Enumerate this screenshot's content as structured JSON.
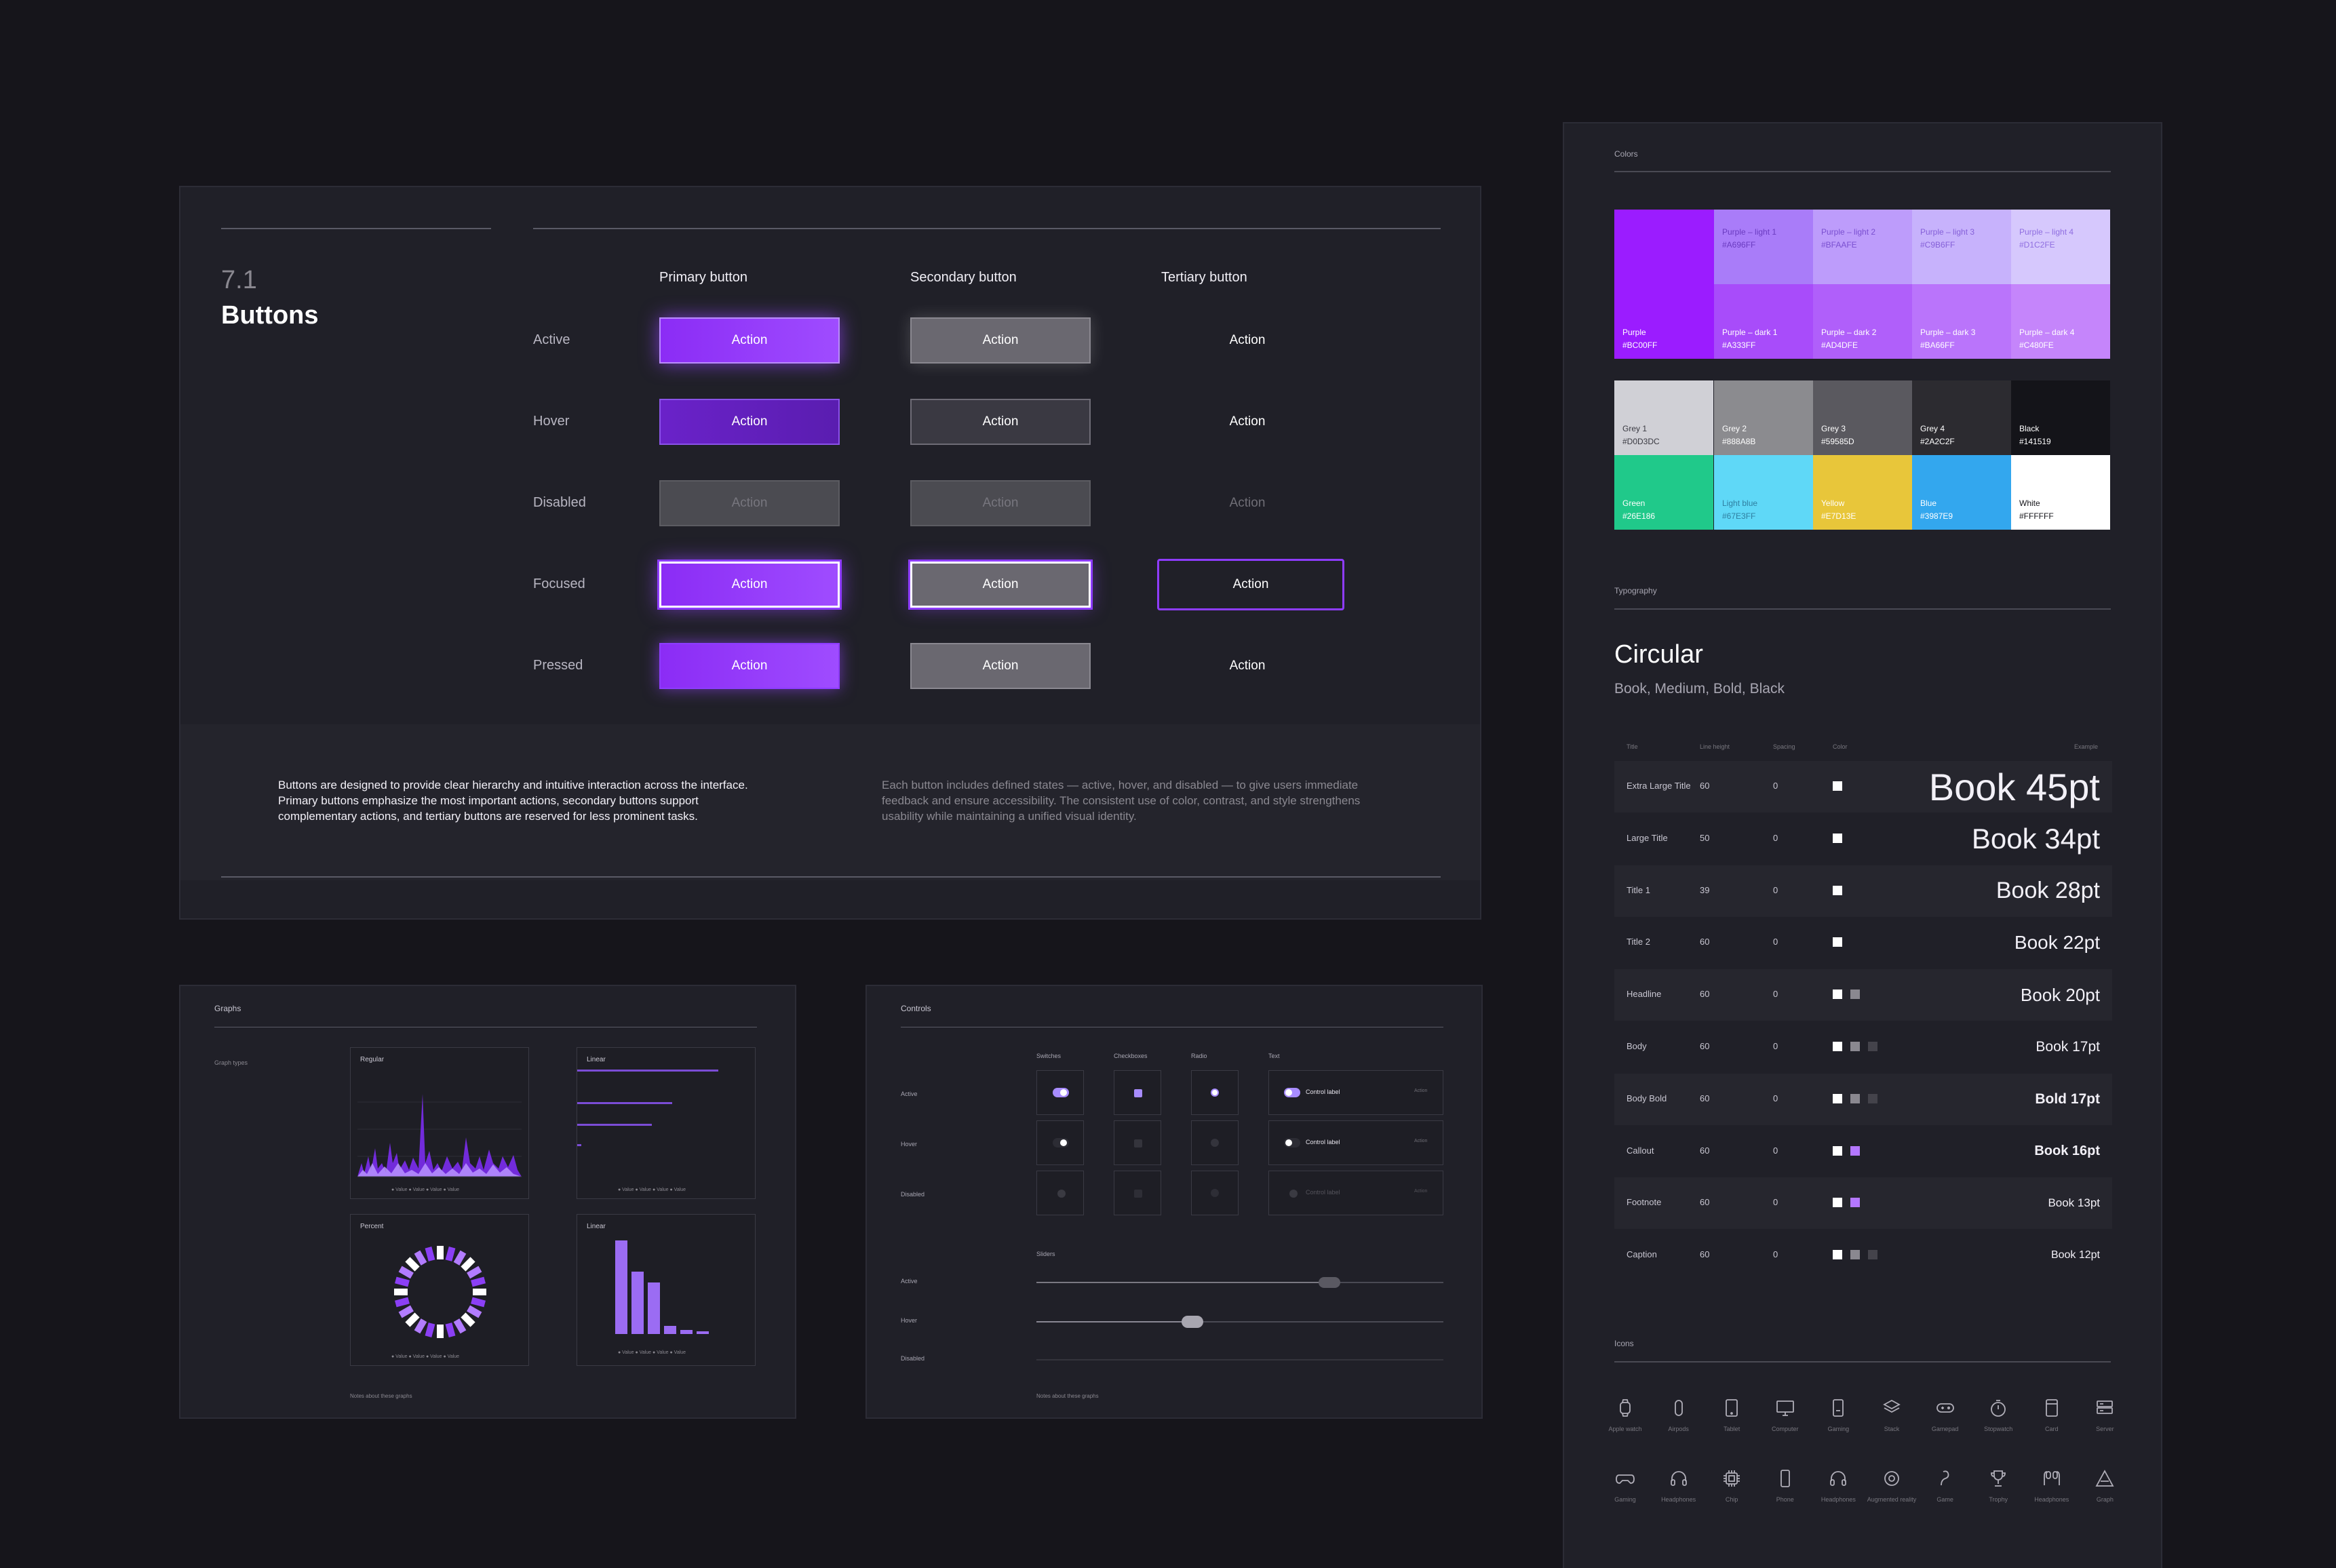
{
  "buttons": {
    "number": "7.1",
    "title": "Buttons",
    "columns": [
      "Primary button",
      "Secondary button",
      "Tertiary button"
    ],
    "states": [
      "Active",
      "Hover",
      "Disabled",
      "Focused",
      "Pressed"
    ],
    "action_label": "Action",
    "desc_left": "Buttons are designed to provide clear hierarchy and intuitive interaction across the interface. Primary buttons emphasize the most important actions, secondary buttons support complementary actions, and tertiary buttons are reserved for less prominent tasks.",
    "desc_right": "Each button includes defined states — active, hover, and disabled — to give users immediate feedback and ensure accessibility. The consistent use of color, contrast, and style strengthens usability while maintaining a unified visual identity."
  },
  "graphs": {
    "title": "Graphs",
    "subtitle": "Graph types",
    "cards": [
      "Regular",
      "Linear",
      "Percent",
      "Linear"
    ],
    "legend": "● Value   ● Value   ● Value   ● Value",
    "notes": "Notes about these graphs"
  },
  "controls": {
    "title": "Controls",
    "columns": [
      "Switches",
      "Checkboxes",
      "Radio",
      "Text"
    ],
    "states": [
      "Active",
      "Hover",
      "Disabled"
    ],
    "control_label": "Control label",
    "action": "Action",
    "sliders_title": "Sliders",
    "slider_states": [
      "Active",
      "Hover",
      "Disabled"
    ],
    "notes": "Notes about these graphs"
  },
  "colors": {
    "title": "Colors",
    "purple_main": {
      "name": "Purple",
      "hex": "#BC00FF",
      "color": "#9b1cff"
    },
    "purple_light": [
      {
        "name": "Purple – light 1",
        "hex": "#A696FF",
        "color": "#a97cf9"
      },
      {
        "name": "Purple – light 2",
        "hex": "#BFAAFE",
        "color": "#bd9cfb"
      },
      {
        "name": "Purple – light 3",
        "hex": "#C9B6FF",
        "color": "#c7b2fc"
      },
      {
        "name": "Purple – light 4",
        "hex": "#D1C2FE",
        "color": "#d6c8fd"
      }
    ],
    "purple_dark": [
      {
        "name": "Purple – dark 1",
        "hex": "#A333FF",
        "color": "#a84cfa"
      },
      {
        "name": "Purple – dark 2",
        "hex": "#AD4DFE",
        "color": "#b05ffa"
      },
      {
        "name": "Purple – dark 3",
        "hex": "#BA66FF",
        "color": "#ba74fb"
      },
      {
        "name": "Purple – dark 4",
        "hex": "#C480FE",
        "color": "#c585fb"
      }
    ],
    "greys": [
      {
        "name": "Grey 1",
        "hex": "#D0D3DC",
        "color": "#d0d0d6"
      },
      {
        "name": "Grey 2",
        "hex": "#888A8B",
        "color": "#8b8b8f"
      },
      {
        "name": "Grey 3",
        "hex": "#59585D",
        "color": "#5a595f"
      },
      {
        "name": "Grey 4",
        "hex": "#2A2C2F",
        "color": "#2c2b30"
      },
      {
        "name": "Black",
        "hex": "#141519",
        "color": "#141419"
      }
    ],
    "accents": [
      {
        "name": "Green",
        "hex": "#26E186",
        "color": "#20c98a"
      },
      {
        "name": "Light blue",
        "hex": "#67E3FF",
        "color": "#5fd8f7"
      },
      {
        "name": "Yellow",
        "hex": "#E7D13E",
        "color": "#e8c63a"
      },
      {
        "name": "Blue",
        "hex": "#3987E9",
        "color": "#33a7ee"
      },
      {
        "name": "White",
        "hex": "#FFFFFF",
        "color": "#ffffff"
      }
    ]
  },
  "typography": {
    "title": "Typography",
    "font": "Circular",
    "weights": "Book, Medium, Bold, Black",
    "headers": [
      "Title",
      "Line height",
      "Spacing",
      "Color",
      "Example"
    ],
    "rows": [
      {
        "title": "Extra Large Title",
        "lh": "60",
        "sp": "0",
        "example": "Book 45pt"
      },
      {
        "title": "Large Title",
        "lh": "50",
        "sp": "0",
        "example": "Book 34pt"
      },
      {
        "title": "Title 1",
        "lh": "39",
        "sp": "0",
        "example": "Book 28pt"
      },
      {
        "title": "Title 2",
        "lh": "60",
        "sp": "0",
        "example": "Book 22pt"
      },
      {
        "title": "Headline",
        "lh": "60",
        "sp": "0",
        "example": "Book 20pt"
      },
      {
        "title": "Body",
        "lh": "60",
        "sp": "0",
        "example": "Book 17pt"
      },
      {
        "title": "Body Bold",
        "lh": "60",
        "sp": "0",
        "example": "Bold 17pt"
      },
      {
        "title": "Callout",
        "lh": "60",
        "sp": "0",
        "example": "Book 16pt"
      },
      {
        "title": "Footnote",
        "lh": "60",
        "sp": "0",
        "example": "Book 13pt"
      },
      {
        "title": "Caption",
        "lh": "60",
        "sp": "0",
        "example": "Book 12pt"
      }
    ]
  },
  "icons": {
    "title": "Icons",
    "row1": [
      "Apple watch",
      "Airpods",
      "Tablet",
      "Computer",
      "Gaming",
      "Stack",
      "Gamepad",
      "Stopwatch",
      "Card",
      "Server"
    ],
    "row2": [
      "Gaming",
      "Headphones",
      "Chip",
      "Phone",
      "Headphones",
      "Augmented reality",
      "Game",
      "Trophy",
      "Headphones",
      "Graph"
    ]
  }
}
